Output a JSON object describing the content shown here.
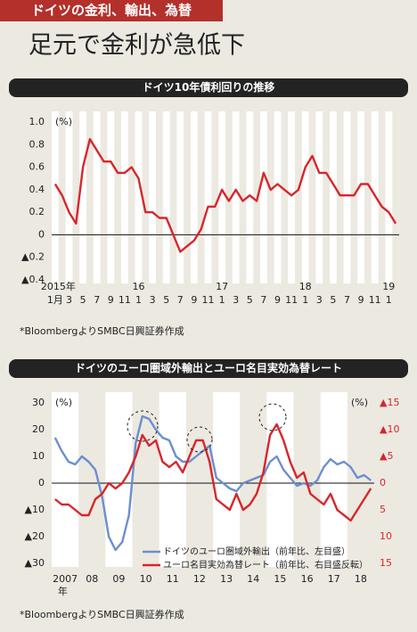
{
  "header": {
    "tag": "ドイツの金利、輸出、為替",
    "title": "足元で金利が急低下"
  },
  "chart_data": [
    {
      "type": "line",
      "title": "ドイツ10年債利回りの推移",
      "y_unit": "(%)",
      "color": "#d8262b",
      "categories": [
        "1月",
        null,
        "3",
        null,
        "5",
        null,
        "7",
        null,
        "9",
        null,
        "11",
        null,
        "1",
        null,
        "3",
        null,
        "5",
        null,
        "7",
        null,
        "9",
        null,
        "11",
        null,
        "1",
        null,
        "3",
        null,
        "5",
        null,
        "7",
        null,
        "9",
        null,
        "11",
        null,
        "1",
        null,
        "3",
        null,
        "5",
        null,
        "7",
        null,
        "9",
        null,
        "11",
        null,
        "1",
        null
      ],
      "year_labels": [
        "2015年",
        null,
        null,
        null,
        null,
        null,
        null,
        null,
        null,
        null,
        null,
        null,
        "16",
        null,
        null,
        null,
        null,
        null,
        null,
        null,
        null,
        null,
        null,
        null,
        "17",
        null,
        null,
        null,
        null,
        null,
        null,
        null,
        null,
        null,
        null,
        null,
        "18",
        null,
        null,
        null,
        null,
        null,
        null,
        null,
        null,
        null,
        null,
        null,
        "19",
        null
      ],
      "values": [
        0.45,
        0.35,
        0.2,
        0.1,
        0.6,
        0.85,
        0.75,
        0.65,
        0.65,
        0.55,
        0.55,
        0.6,
        0.5,
        0.2,
        0.2,
        0.15,
        0.15,
        0.0,
        -0.15,
        -0.1,
        -0.05,
        0.05,
        0.25,
        0.25,
        0.4,
        0.3,
        0.4,
        0.3,
        0.35,
        0.3,
        0.55,
        0.4,
        0.45,
        0.4,
        0.35,
        0.4,
        0.6,
        0.7,
        0.55,
        0.55,
        0.45,
        0.35,
        0.35,
        0.35,
        0.45,
        0.45,
        0.35,
        0.25,
        0.2,
        0.1
      ],
      "ylim": [
        -0.4,
        1.0
      ],
      "yticks": [
        {
          "value": 1.0,
          "label": "1.0"
        },
        0.8,
        0.6,
        0.4,
        0.2,
        0,
        {
          "value": -0.2,
          "label": "▲0.2"
        },
        {
          "value": -0.4,
          "label": "▲0.4"
        }
      ],
      "note": "*BloombergよりSMBC日興証券作成"
    },
    {
      "type": "line",
      "title": "ドイツのユーロ圏域外輸出とユーロ名目実効為替レート",
      "y_unit": "(%)",
      "y2_unit": "(%)",
      "x_unit": "年",
      "categories": [
        "2007",
        null,
        null,
        null,
        "08",
        null,
        null,
        null,
        "09",
        null,
        null,
        null,
        "10",
        null,
        null,
        null,
        "11",
        null,
        null,
        null,
        "12",
        null,
        null,
        null,
        "13",
        null,
        null,
        null,
        "14",
        null,
        null,
        null,
        "15",
        null,
        null,
        null,
        "16",
        null,
        null,
        null,
        "17",
        null,
        null,
        null,
        "18",
        null,
        null,
        null
      ],
      "series": [
        {
          "name": "ドイツのユーロ圏域外輸出（前年比、左目盛）",
          "color": "#6a8fd0",
          "values": [
            17,
            12,
            8,
            7,
            10,
            8,
            5,
            -5,
            -20,
            -25,
            -22,
            -12,
            15,
            25,
            24,
            20,
            17,
            16,
            10,
            8,
            8,
            10,
            12,
            14,
            2,
            0,
            -2,
            -3,
            0,
            1,
            2,
            3,
            8,
            10,
            5,
            2,
            -1,
            0,
            -1,
            1,
            6,
            9,
            7,
            8,
            6,
            2,
            3,
            1
          ]
        },
        {
          "name": "ユーロ名目実効為替レート（前年比、右目盛反転）",
          "color": "#d8262b",
          "axis": "y2",
          "values": [
            3,
            4,
            4,
            5,
            6,
            6,
            3,
            2,
            0,
            1,
            0,
            -2,
            -5,
            -9,
            -7,
            -8,
            -4,
            -3,
            -4,
            -2,
            -5,
            -8,
            -8,
            -4,
            3,
            4,
            5,
            2,
            5,
            4,
            2,
            -2,
            -9,
            -11,
            -8,
            -4,
            -1,
            -2,
            2,
            3,
            4,
            2,
            5,
            6,
            7,
            5,
            3,
            1
          ]
        }
      ],
      "ylim": [
        -30,
        30
      ],
      "yticks": [
        30,
        20,
        10,
        0,
        {
          "value": -10,
          "label": "▲10"
        },
        {
          "value": -20,
          "label": "▲20"
        },
        {
          "value": -30,
          "label": "▲30"
        }
      ],
      "y2lim": [
        15,
        -15
      ],
      "y2ticks": [
        {
          "value": -15,
          "label": "▲15"
        },
        {
          "value": -10,
          "label": "▲10"
        },
        {
          "value": -5,
          "label": "▲5"
        },
        0,
        5,
        10,
        15
      ],
      "note": "*BloombergよりSMBC日興証券作成"
    }
  ]
}
